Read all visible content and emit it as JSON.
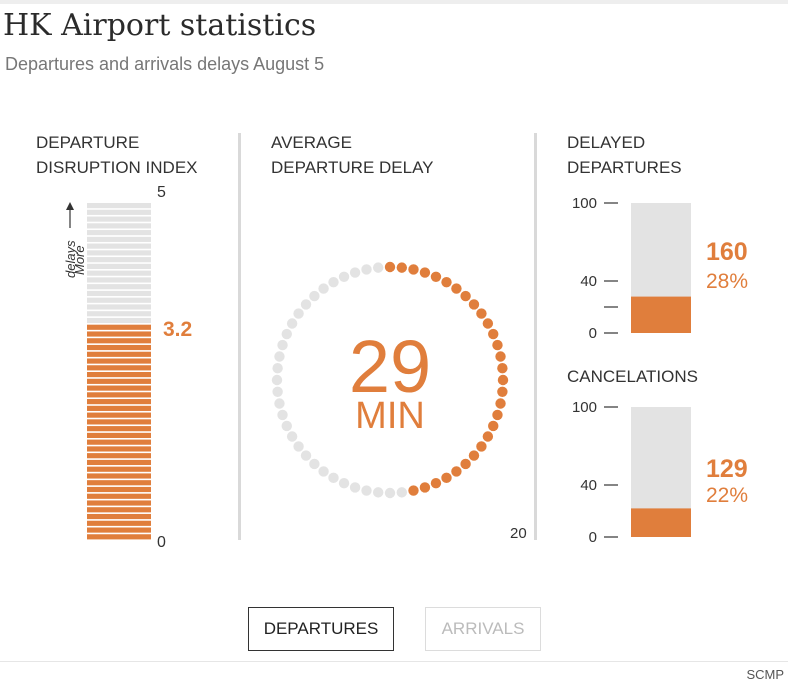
{
  "header": {
    "title": "HK Airport statistics",
    "subtitle": "Departures and arrivals delays August 5"
  },
  "colors": {
    "accent": "#e07e3c",
    "muted": "#e3e3e3",
    "divider": "#d9d9d9"
  },
  "disruption": {
    "label_line1": "DEPARTURE",
    "label_line2": "DISRUPTION INDEX",
    "axis_max": "5",
    "axis_min": "0",
    "value_label": "3.2",
    "more_line1": "More",
    "more_line2": "delays"
  },
  "avg_delay": {
    "label_line1": "AVERAGE",
    "label_line2": "DEPARTURE DELAY",
    "value": "29",
    "unit": "MIN",
    "scale_label": "20"
  },
  "delayed": {
    "label_line1": "DELAYED",
    "label_line2": "DEPARTURES",
    "tick_100": "100",
    "tick_40": "40",
    "tick_0": "0",
    "count": "160",
    "percent": "28%"
  },
  "cancel": {
    "label": "CANCELATIONS",
    "tick_100": "100",
    "tick_40": "40",
    "tick_0": "0",
    "count": "129",
    "percent": "22%"
  },
  "tabs": {
    "departures": "DEPARTURES",
    "arrivals": "ARRIVALS"
  },
  "footer": {
    "source": "SCMP"
  },
  "chart_data": [
    {
      "type": "bar",
      "title": "DEPARTURE DISRUPTION INDEX",
      "categories": [
        ""
      ],
      "values": [
        3.2
      ],
      "ylim": [
        0,
        5
      ],
      "annotation": "More delays"
    },
    {
      "type": "pie",
      "title": "AVERAGE DEPARTURE DELAY",
      "values": [
        29
      ],
      "value_label": "29 MIN",
      "scale_max": 60
    },
    {
      "type": "bar",
      "title": "DELAYED DEPARTURES",
      "categories": [
        ""
      ],
      "values": [
        28
      ],
      "ylim": [
        0,
        100
      ],
      "yticks": [
        0,
        40,
        100
      ],
      "labels": [
        "160",
        "28%"
      ]
    },
    {
      "type": "bar",
      "title": "CANCELATIONS",
      "categories": [
        ""
      ],
      "values": [
        22
      ],
      "ylim": [
        0,
        100
      ],
      "yticks": [
        0,
        40,
        100
      ],
      "labels": [
        "129",
        "22%"
      ]
    }
  ]
}
